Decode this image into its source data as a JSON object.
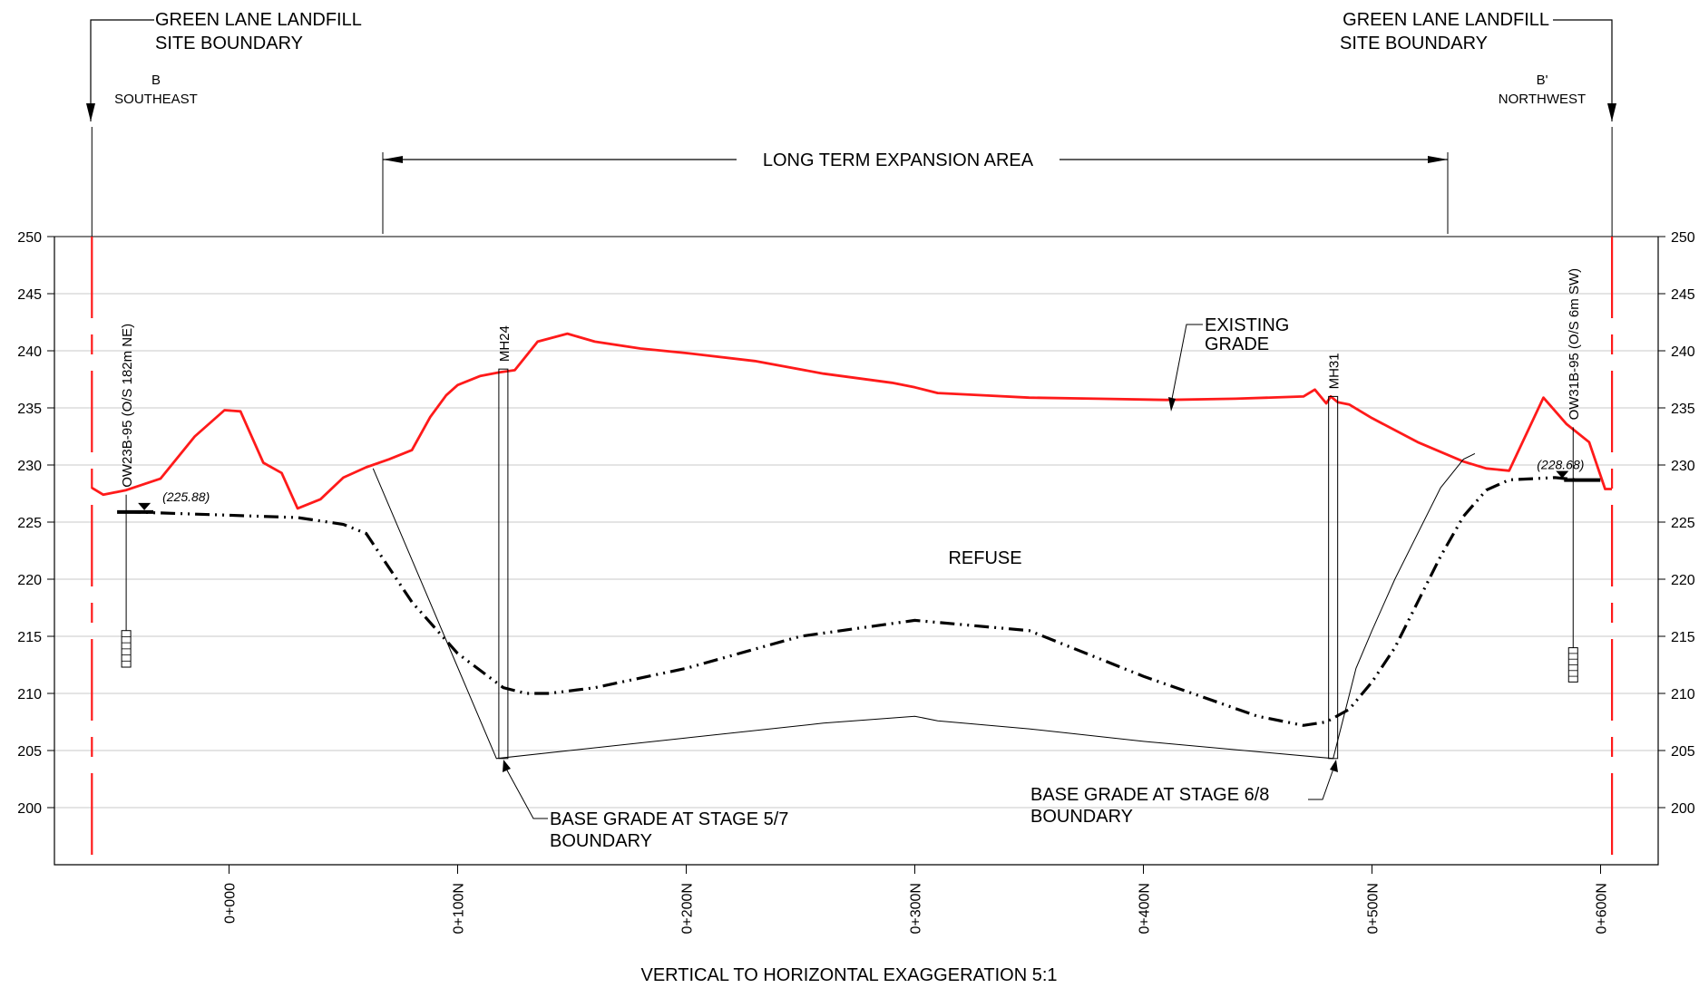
{
  "title_left": [
    "GREEN LANE LANDFILL",
    "SITE BOUNDARY"
  ],
  "title_right": [
    "GREEN LANE LANDFILL",
    "SITE BOUNDARY"
  ],
  "section_left": [
    "B",
    "SOUTHEAST"
  ],
  "section_right": [
    "B'",
    "NORTHWEST"
  ],
  "expansion_label": "LONG TERM EXPANSION AREA",
  "refuse_label": "REFUSE",
  "existing_grade_label": [
    "EXISTING",
    "GRADE"
  ],
  "base_grade_57_label": [
    "BASE GRADE AT STAGE 5/7",
    "BOUNDARY"
  ],
  "base_grade_68_label": [
    "BASE GRADE AT STAGE 6/8",
    "BOUNDARY"
  ],
  "footer": "VERTICAL TO HORIZONTAL EXAGGERATION 5:1",
  "wells": [
    {
      "id": "OW23B-95 (O/S 182m NE)",
      "water_level_label": "(225.88)",
      "chainage": -45,
      "water_level": 225.88,
      "ground": 227.4,
      "screen_top": 215.5,
      "screen_bottom": 212.3
    },
    {
      "id": "OW31B-95 (O/S 6m SW)",
      "water_level_label": "(228.68)",
      "chainage": 588,
      "water_level": 228.68,
      "ground": 233.3,
      "screen_top": 214,
      "screen_bottom": 211
    }
  ],
  "manholes": [
    {
      "id": "MH24",
      "chainage": 120,
      "top": 238.4,
      "bottom": 204.3
    },
    {
      "id": "MH31",
      "chainage": 483,
      "top": 236.0,
      "bottom": 204.3
    }
  ],
  "colors": {
    "existing_grade": "#ff1a1a",
    "boundary": "#ff1a1a",
    "line": "#000000",
    "grid": "#c8c8c8"
  },
  "chart_data": {
    "type": "line",
    "xlim": [
      -60,
      630
    ],
    "ylim": [
      195,
      250
    ],
    "yticks": [
      200,
      205,
      210,
      215,
      220,
      225,
      230,
      235,
      240,
      245,
      250
    ],
    "xticks": [
      0,
      100,
      200,
      300,
      400,
      500,
      600
    ],
    "xtick_labels": [
      "0+000",
      "0+100N",
      "0+200N",
      "0+300N",
      "0+400N",
      "0+500N",
      "0+600N"
    ],
    "site_boundary_chainages": [
      -60,
      605
    ],
    "expansion_area": [
      68,
      533
    ],
    "series": [
      {
        "name": "EXISTING GRADE",
        "style": "solid-red",
        "x": [
          -60,
          -55,
          -45,
          -30,
          -15,
          -2,
          5,
          15,
          23,
          30,
          40,
          50,
          60,
          70,
          80,
          88,
          95,
          100,
          110,
          118,
          125,
          135,
          148,
          160,
          180,
          200,
          230,
          260,
          290,
          300,
          310,
          330,
          350,
          380,
          410,
          440,
          470,
          475,
          480,
          482,
          485,
          490,
          500,
          520,
          540,
          550,
          560,
          575,
          585,
          595,
          602,
          605
        ],
        "y": [
          228.0,
          227.4,
          227.8,
          228.8,
          232.5,
          234.8,
          234.7,
          230.2,
          229.3,
          226.2,
          227.0,
          228.9,
          229.8,
          230.5,
          231.3,
          234.2,
          236.1,
          237.0,
          237.8,
          238.1,
          238.3,
          240.8,
          241.5,
          240.8,
          240.2,
          239.8,
          239.1,
          238.0,
          237.2,
          236.8,
          236.3,
          236.1,
          235.9,
          235.8,
          235.7,
          235.8,
          236.0,
          236.6,
          235.4,
          236.0,
          235.5,
          235.3,
          234.1,
          232.0,
          230.3,
          229.7,
          229.5,
          235.9,
          233.6,
          232.0,
          227.9,
          227.9
        ]
      },
      {
        "name": "GROUNDWATER",
        "style": "dash-dot-dot",
        "x": [
          -45,
          -30,
          0,
          30,
          50,
          60,
          65,
          80,
          100,
          120,
          130,
          140,
          160,
          200,
          250,
          300,
          350,
          400,
          450,
          470,
          480,
          490,
          500,
          510,
          520,
          530,
          540,
          550,
          560,
          580,
          590
        ],
        "y": [
          225.9,
          225.8,
          225.6,
          225.4,
          224.8,
          224.0,
          222.5,
          218.0,
          213.5,
          210.5,
          210.0,
          210.0,
          210.5,
          212.2,
          215.0,
          216.4,
          215.5,
          211.5,
          208.0,
          207.2,
          207.5,
          208.6,
          211.0,
          214.0,
          218.0,
          222.0,
          225.5,
          227.8,
          228.7,
          228.9,
          228.7
        ]
      },
      {
        "name": "BASE GRADE",
        "style": "solid-thin",
        "x": [
          63,
          117,
          200,
          260,
          300,
          310,
          350,
          400,
          483,
          493,
          500,
          510,
          530,
          540,
          545
        ],
        "y": [
          229.7,
          204.3,
          206.1,
          207.4,
          208.0,
          207.6,
          206.9,
          205.8,
          204.3,
          212.2,
          215.5,
          220.0,
          228.0,
          230.5,
          231.0
        ]
      }
    ]
  }
}
